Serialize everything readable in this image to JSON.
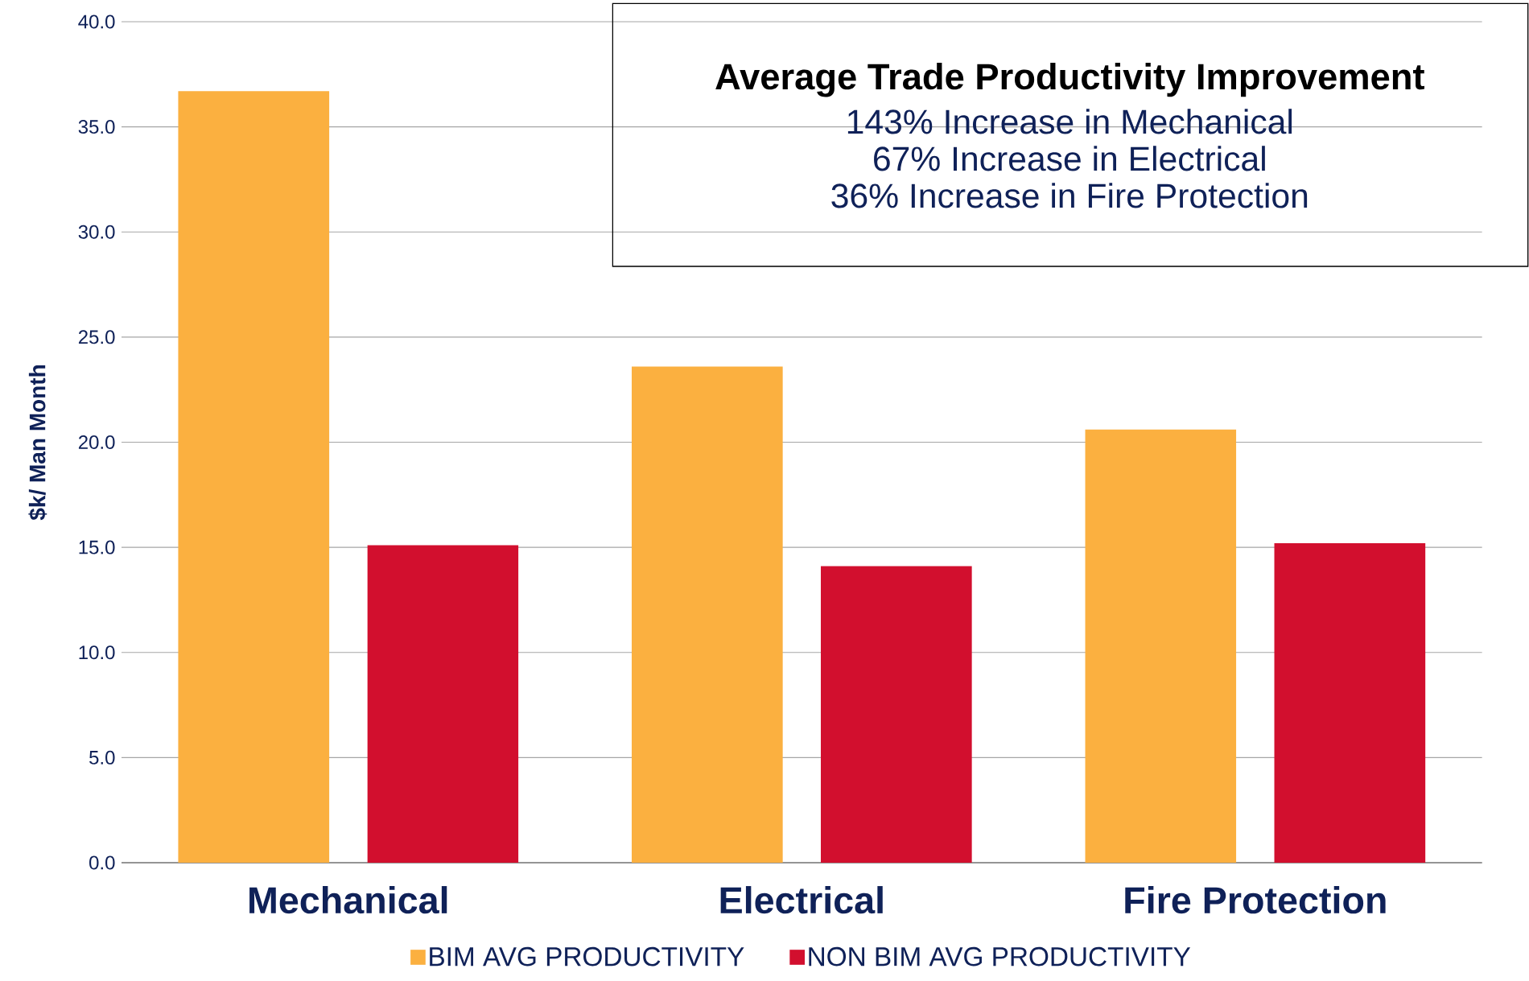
{
  "chart_data": {
    "type": "bar",
    "title": "Average Trade Productivity Improvement",
    "annotations": [
      "143% Increase in Mechanical",
      "67% Increase in Electrical",
      "36% Increase in Fire Protection"
    ],
    "categories": [
      "Mechanical",
      "Electrical",
      "Fire Protection"
    ],
    "series": [
      {
        "name": "BIM AVG PRODUCTIVITY",
        "color": "#fbb040",
        "values": [
          36.7,
          23.6,
          20.6
        ]
      },
      {
        "name": "NON BIM AVG PRODUCTIVITY",
        "color": "#d20f2e",
        "values": [
          15.1,
          14.1,
          15.2
        ]
      }
    ],
    "ylabel": "$k/ Man Month",
    "ylim": [
      0,
      40
    ],
    "yticks": [
      {
        "value": 0,
        "label": "0.0"
      },
      {
        "value": 5,
        "label": "5.0"
      },
      {
        "value": 10,
        "label": "10.0"
      },
      {
        "value": 15,
        "label": "15.0"
      },
      {
        "value": 20,
        "label": "20.0"
      },
      {
        "value": 25,
        "label": "25.0"
      },
      {
        "value": 30,
        "label": "30.0"
      },
      {
        "value": 35,
        "label": "35.0"
      },
      {
        "value": 40,
        "label": "40.0"
      }
    ],
    "grid": "y",
    "legend": "bottom"
  }
}
